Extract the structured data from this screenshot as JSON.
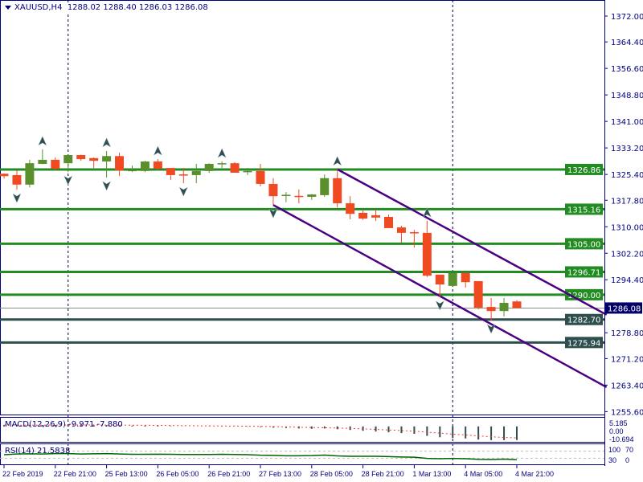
{
  "header": {
    "symbol": "XAUUSD,H4",
    "ohlc": "1288.02 1288.40 1286.03 1286.08"
  },
  "colors": {
    "bull": "#5a8f2e",
    "bear": "#f04a23",
    "support_resistance": "#228b22",
    "key_level": "#2f4f4f",
    "channel": "#4b0082",
    "axis": "#000080",
    "bid_label": "#000066",
    "macd_hist": "#2f4f4f",
    "macd_signal": "#ff3333",
    "rsi": "#006400"
  },
  "price_axis": {
    "min": 1255.6,
    "max": 1372.0,
    "ticks": [
      "1372.00",
      "1364.40",
      "1356.60",
      "1348.80",
      "1341.00",
      "1333.20",
      "1325.40",
      "1317.80",
      "1310.00",
      "1302.20",
      "1294.40",
      "1278.80",
      "1271.20",
      "1263.40",
      "1255.60"
    ]
  },
  "levels": [
    {
      "price": "1326.86",
      "kind": "support_resistance"
    },
    {
      "price": "1315.16",
      "kind": "support_resistance"
    },
    {
      "price": "1305.00",
      "kind": "support_resistance"
    },
    {
      "price": "1296.71",
      "kind": "support_resistance"
    },
    {
      "price": "1290.00",
      "kind": "support_resistance"
    },
    {
      "price": "1282.70",
      "kind": "key_level"
    },
    {
      "price": "1275.94",
      "kind": "key_level"
    }
  ],
  "bid": {
    "price": "1286.08"
  },
  "channel_lines": [
    {
      "from": {
        "candle": 26,
        "price": 1326.9
      },
      "to": {
        "candle": 47,
        "price": 1284.1
      }
    },
    {
      "from": {
        "candle": 21,
        "price": 1316.4
      },
      "to": {
        "candle": 47,
        "price": 1262.8
      }
    }
  ],
  "period_separators": [
    5,
    35
  ],
  "candles": [
    [
      1325.6,
      1325.7,
      1324.2,
      1324.9
    ],
    [
      1325.2,
      1326.6,
      1320.9,
      1322.4
    ],
    [
      1322.4,
      1329.7,
      1321.6,
      1328.7
    ],
    [
      1328.5,
      1332.8,
      1328.4,
      1329.7
    ],
    [
      1329.7,
      1330.4,
      1326.6,
      1327.1
    ],
    [
      1328.7,
      1331.1,
      1326.1,
      1331.1
    ],
    [
      1331.1,
      1331.2,
      1329.4,
      1329.9
    ],
    [
      1330.2,
      1330.4,
      1327.3,
      1329.4
    ],
    [
      1329.2,
      1332.3,
      1324.5,
      1330.8
    ],
    [
      1330.8,
      1331.8,
      1324.9,
      1326.6
    ],
    [
      1326.6,
      1328.0,
      1326.1,
      1326.7
    ],
    [
      1326.4,
      1329.4,
      1326.1,
      1329.2
    ],
    [
      1329.2,
      1329.9,
      1326.6,
      1327.1
    ],
    [
      1327.3,
      1327.3,
      1323.8,
      1325.2
    ],
    [
      1325.4,
      1327.3,
      1322.8,
      1325.2
    ],
    [
      1325.2,
      1328.5,
      1322.8,
      1326.4
    ],
    [
      1326.4,
      1328.7,
      1325.9,
      1328.5
    ],
    [
      1328.5,
      1329.2,
      1327.3,
      1328.7
    ],
    [
      1328.7,
      1329.0,
      1325.9,
      1325.9
    ],
    [
      1326.2,
      1327.3,
      1325.2,
      1326.4
    ],
    [
      1326.4,
      1328.5,
      1321.9,
      1322.6
    ],
    [
      1322.6,
      1324.3,
      1316.4,
      1319.0
    ],
    [
      1319.1,
      1320.2,
      1317.2,
      1319.4
    ],
    [
      1319.1,
      1321.0,
      1316.9,
      1318.8
    ],
    [
      1318.8,
      1319.6,
      1317.9,
      1319.5
    ],
    [
      1319.3,
      1325.4,
      1318.8,
      1324.3
    ],
    [
      1324.3,
      1326.9,
      1315.7,
      1316.9
    ],
    [
      1316.9,
      1319.0,
      1312.2,
      1313.8
    ],
    [
      1314.1,
      1315.0,
      1312.0,
      1312.4
    ],
    [
      1313.4,
      1315.0,
      1311.7,
      1312.7
    ],
    [
      1312.9,
      1313.6,
      1309.6,
      1309.6
    ],
    [
      1309.8,
      1310.3,
      1305.3,
      1308.2
    ],
    [
      1308.4,
      1309.1,
      1303.9,
      1308.2
    ],
    [
      1308.2,
      1311.7,
      1295.2,
      1295.6
    ],
    [
      1295.9,
      1295.9,
      1289.3,
      1293.0
    ],
    [
      1292.6,
      1296.4,
      1292.6,
      1296.4
    ],
    [
      1296.4,
      1296.4,
      1292.1,
      1293.7
    ],
    [
      1294.0,
      1294.0,
      1285.7,
      1286.2
    ],
    [
      1286.4,
      1289.0,
      1282.4,
      1285.2
    ],
    [
      1285.2,
      1289.0,
      1283.6,
      1287.6
    ],
    [
      1288.02,
      1288.4,
      1286.03,
      1286.08
    ]
  ],
  "fractals": [
    {
      "candle": 3,
      "type": "up"
    },
    {
      "candle": 8,
      "type": "up"
    },
    {
      "candle": 12,
      "type": "up"
    },
    {
      "candle": 17,
      "type": "up"
    },
    {
      "candle": 26,
      "type": "up"
    },
    {
      "candle": 33,
      "type": "up"
    },
    {
      "candle": 1,
      "type": "down"
    },
    {
      "candle": 5,
      "type": "down"
    },
    {
      "candle": 8,
      "type": "down"
    },
    {
      "candle": 14,
      "type": "down"
    },
    {
      "candle": 21,
      "type": "down"
    },
    {
      "candle": 34,
      "type": "down"
    },
    {
      "candle": 38,
      "type": "down"
    }
  ],
  "macd": {
    "label": "MACD(12,26,9) -9.971 -7.880",
    "scale": [
      "5.185",
      "0.00",
      "-10.694"
    ],
    "range": [
      -10.694,
      5.185
    ],
    "values": [
      1.0,
      0.8,
      0.9,
      1.0,
      1.1,
      1.2,
      1.1,
      1.0,
      1.0,
      0.8,
      0.6,
      0.6,
      0.5,
      0.3,
      0.1,
      0.0,
      0.1,
      0.1,
      -0.1,
      -0.2,
      -0.5,
      -0.9,
      -1.2,
      -1.5,
      -1.7,
      -1.5,
      -2.0,
      -2.6,
      -3.2,
      -3.7,
      -4.3,
      -4.9,
      -5.4,
      -6.9,
      -7.9,
      -8.4,
      -8.8,
      -9.6,
      -10.0,
      -10.0,
      -9.971
    ]
  },
  "rsi": {
    "label": "RSI(14) 21.5838",
    "scale": [
      "100",
      "70",
      "30",
      "0"
    ],
    "levels": [
      70,
      30
    ],
    "values": [
      50,
      54,
      55,
      54,
      56,
      56,
      54,
      55,
      56,
      54,
      52,
      52,
      53,
      52,
      51,
      51,
      51,
      52,
      51,
      50,
      47,
      46,
      44,
      44,
      45,
      48,
      43,
      41,
      41,
      41,
      39,
      37,
      36,
      29,
      27,
      29,
      27,
      24,
      23,
      25,
      21.58
    ]
  },
  "time_axis": [
    "22 Feb 2019",
    "22 Feb 21:00",
    "25 Feb 13:00",
    "26 Feb 05:00",
    "26 Feb 21:00",
    "27 Feb 13:00",
    "28 Feb 05:00",
    "28 Feb 21:00",
    "1 Mar 13:00",
    "4 Mar 05:00",
    "4 Mar 21:00"
  ]
}
